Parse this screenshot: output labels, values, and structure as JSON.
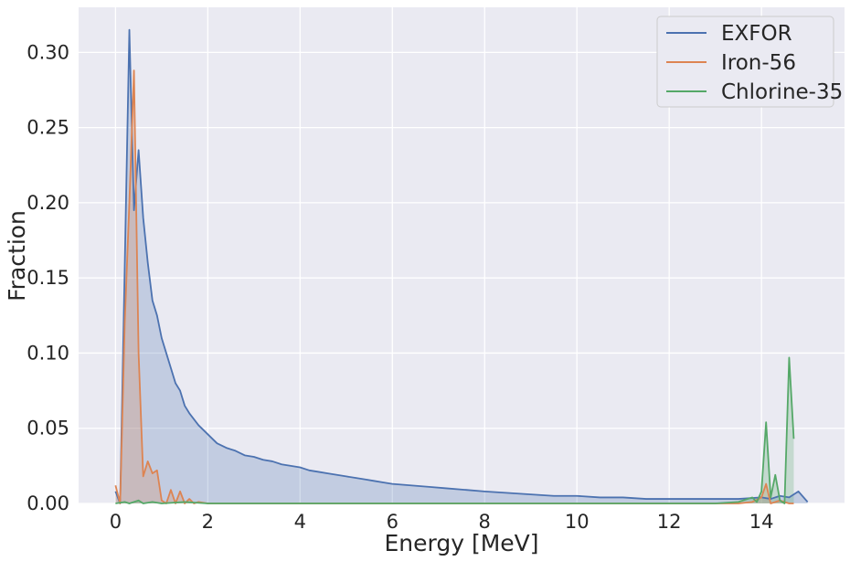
{
  "chart_data": {
    "type": "area",
    "xlabel": "Energy [MeV]",
    "ylabel": "Fraction",
    "xlim": [
      -0.8,
      15.8
    ],
    "ylim": [
      0,
      0.33
    ],
    "xticks": [
      0,
      2,
      4,
      6,
      8,
      10,
      12,
      14
    ],
    "yticks": [
      0.0,
      0.05,
      0.1,
      0.15,
      0.2,
      0.25,
      0.3
    ],
    "ytick_labels": [
      "0.00",
      "0.05",
      "0.10",
      "0.15",
      "0.20",
      "0.25",
      "0.30"
    ],
    "grid": true,
    "legend_position": "top-right",
    "series": [
      {
        "name": "EXFOR",
        "color": "#4c72b0",
        "x": [
          0.0,
          0.1,
          0.3,
          0.4,
          0.5,
          0.6,
          0.7,
          0.8,
          0.9,
          1.0,
          1.1,
          1.2,
          1.3,
          1.4,
          1.5,
          1.6,
          1.8,
          2.0,
          2.2,
          2.4,
          2.6,
          2.8,
          3.0,
          3.2,
          3.4,
          3.6,
          3.8,
          4.0,
          4.2,
          4.4,
          4.6,
          4.8,
          5.0,
          5.2,
          5.4,
          5.6,
          5.8,
          6.0,
          6.4,
          6.8,
          7.2,
          7.6,
          8.0,
          8.5,
          9.0,
          9.5,
          10.0,
          10.5,
          11.0,
          11.5,
          12.0,
          12.5,
          13.0,
          13.5,
          14.0,
          14.2,
          14.4,
          14.6,
          14.8,
          15.0
        ],
        "y": [
          0.008,
          0.0,
          0.315,
          0.195,
          0.235,
          0.19,
          0.16,
          0.135,
          0.125,
          0.11,
          0.1,
          0.09,
          0.08,
          0.075,
          0.065,
          0.06,
          0.052,
          0.046,
          0.04,
          0.037,
          0.035,
          0.032,
          0.031,
          0.029,
          0.028,
          0.026,
          0.025,
          0.024,
          0.022,
          0.021,
          0.02,
          0.019,
          0.018,
          0.017,
          0.016,
          0.015,
          0.014,
          0.013,
          0.012,
          0.011,
          0.01,
          0.009,
          0.008,
          0.007,
          0.006,
          0.005,
          0.005,
          0.004,
          0.004,
          0.003,
          0.003,
          0.003,
          0.003,
          0.003,
          0.004,
          0.003,
          0.005,
          0.004,
          0.008,
          0.001
        ]
      },
      {
        "name": "Iron-56",
        "color": "#dd8452",
        "x": [
          0.0,
          0.1,
          0.2,
          0.3,
          0.4,
          0.5,
          0.6,
          0.7,
          0.8,
          0.9,
          1.0,
          1.1,
          1.2,
          1.3,
          1.4,
          1.5,
          1.6,
          1.7,
          1.8,
          2.0,
          3.0,
          5.0,
          8.0,
          11.0,
          13.0,
          13.5,
          13.8,
          14.0,
          14.1,
          14.2,
          14.4,
          14.6,
          14.7
        ],
        "y": [
          0.012,
          0.0,
          0.12,
          0.2,
          0.288,
          0.1,
          0.018,
          0.028,
          0.02,
          0.022,
          0.002,
          0.0,
          0.009,
          0.0,
          0.008,
          0.0,
          0.003,
          0.0,
          0.001,
          0.0,
          0.0,
          0.0,
          0.0,
          0.0,
          0.0,
          0.0,
          0.001,
          0.004,
          0.013,
          0.0,
          0.002,
          0.0,
          0.0
        ]
      },
      {
        "name": "Chlorine-35",
        "color": "#55a868",
        "x": [
          0.0,
          0.2,
          0.3,
          0.5,
          0.6,
          0.8,
          1.0,
          1.5,
          2.0,
          5.0,
          8.0,
          11.0,
          13.0,
          13.5,
          13.8,
          13.9,
          14.0,
          14.1,
          14.2,
          14.3,
          14.4,
          14.5,
          14.6,
          14.7
        ],
        "y": [
          0.0,
          0.001,
          0.0,
          0.002,
          0.0,
          0.001,
          0.0,
          0.001,
          0.0,
          0.0,
          0.0,
          0.0,
          0.0,
          0.001,
          0.004,
          0.001,
          0.008,
          0.054,
          0.004,
          0.019,
          0.002,
          0.0,
          0.097,
          0.043
        ]
      }
    ]
  }
}
